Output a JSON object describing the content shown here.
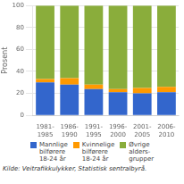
{
  "chart_data": {
    "type": "bar",
    "stacked": true,
    "categories": [
      "1981-\n1985",
      "1986-\n1990",
      "1991-\n1995",
      "1996-\n2000",
      "2001-\n2005",
      "2006-\n2010"
    ],
    "series": [
      {
        "name": "Mannlige\nbilførere\n18-24 år",
        "color": "#3366CC",
        "values": [
          30,
          28,
          24,
          21,
          20,
          21
        ]
      },
      {
        "name": "Kvinnelige\nbilførere\n18-24 år",
        "color": "#FF9900",
        "values": [
          3,
          6,
          4,
          3,
          5,
          5
        ]
      },
      {
        "name": "Øvrige\nalders-\ngrupper",
        "color": "#8AAD3B",
        "values": [
          67,
          66,
          72,
          76,
          75,
          74
        ]
      }
    ],
    "ylabel": "Prosent",
    "ylim": [
      0,
      100
    ],
    "yticks": [
      0,
      20,
      40,
      60,
      80,
      100
    ],
    "grid": true,
    "legend": "bottom",
    "annotations": [
      "Kilde: Veitrafikkulykker, Statistisk sentralbyrå."
    ]
  }
}
